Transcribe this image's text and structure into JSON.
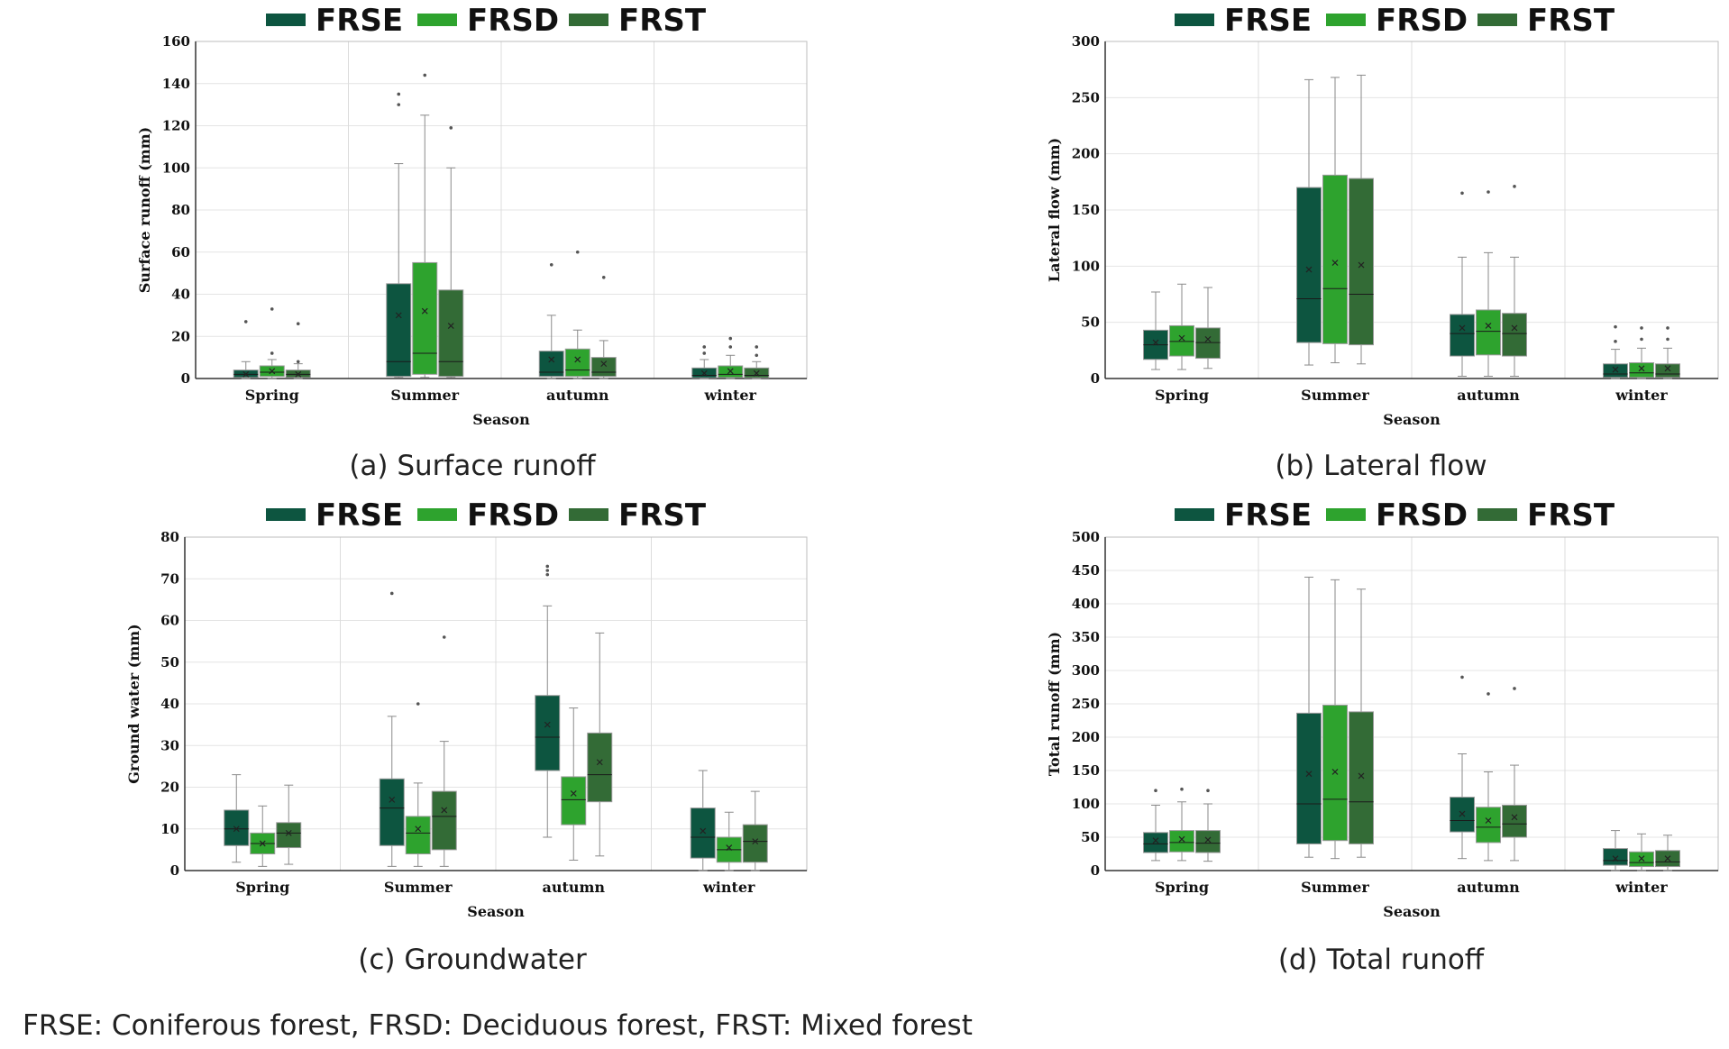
{
  "footnote": "FRSE: Coniferous forest, FRSD: Deciduous forest, FRST: Mixed forest",
  "colors": {
    "FRSE": "#0d5540",
    "FRSD": "#2ea32e",
    "FRST": "#336b36"
  },
  "chart_data": [
    {
      "type": "box",
      "caption": "(a) Surface runoff",
      "xlabel": "Season",
      "ylabel": "Surface runoff (mm)",
      "categories": [
        "Spring",
        "Summer",
        "autumn",
        "winter"
      ],
      "ylim": [
        0,
        160
      ],
      "yticks": [
        0,
        20,
        40,
        60,
        80,
        100,
        120,
        140,
        160
      ],
      "legend": [
        "FRSE",
        "FRSD",
        "FRST"
      ],
      "series": [
        {
          "name": "FRSE",
          "boxes": [
            {
              "min": 0,
              "q1": 0.5,
              "median": 2,
              "q3": 4,
              "max": 8,
              "mean": 2,
              "outliers": [
                27
              ]
            },
            {
              "min": 0.5,
              "q1": 1,
              "median": 8,
              "q3": 45,
              "max": 102,
              "mean": 30,
              "outliers": [
                130,
                135
              ]
            },
            {
              "min": 0,
              "q1": 1,
              "median": 3,
              "q3": 13,
              "max": 30,
              "mean": 9,
              "outliers": [
                54
              ]
            },
            {
              "min": 0,
              "q1": 0.3,
              "median": 1.5,
              "q3": 5,
              "max": 9,
              "mean": 2.5,
              "outliers": [
                12,
                15
              ]
            }
          ]
        },
        {
          "name": "FRSD",
          "boxes": [
            {
              "min": 0,
              "q1": 1,
              "median": 3,
              "q3": 6,
              "max": 9,
              "mean": 3.5,
              "outliers": [
                12,
                33
              ]
            },
            {
              "min": 0.5,
              "q1": 2,
              "median": 12,
              "q3": 55,
              "max": 125,
              "mean": 32,
              "outliers": [
                144
              ]
            },
            {
              "min": 0,
              "q1": 1,
              "median": 4,
              "q3": 14,
              "max": 23,
              "mean": 9,
              "outliers": [
                60
              ]
            },
            {
              "min": 0,
              "q1": 0.5,
              "median": 2,
              "q3": 6,
              "max": 11,
              "mean": 3.5,
              "outliers": [
                15,
                19
              ]
            }
          ]
        },
        {
          "name": "FRST",
          "boxes": [
            {
              "min": 0,
              "q1": 0.5,
              "median": 2,
              "q3": 4,
              "max": 7,
              "mean": 2,
              "outliers": [
                8,
                26
              ]
            },
            {
              "min": 0.5,
              "q1": 1,
              "median": 8,
              "q3": 42,
              "max": 100,
              "mean": 25,
              "outliers": [
                119
              ]
            },
            {
              "min": 0,
              "q1": 1,
              "median": 3,
              "q3": 10,
              "max": 18,
              "mean": 7,
              "outliers": [
                48
              ]
            },
            {
              "min": 0,
              "q1": 0.3,
              "median": 1.5,
              "q3": 5,
              "max": 8,
              "mean": 2.5,
              "outliers": [
                11,
                15
              ]
            }
          ]
        }
      ]
    },
    {
      "type": "box",
      "caption": "(b) Lateral flow",
      "xlabel": "Season",
      "ylabel": "Lateral flow (mm)",
      "categories": [
        "Spring",
        "Summer",
        "autumn",
        "winter"
      ],
      "ylim": [
        0,
        300
      ],
      "yticks": [
        0,
        50,
        100,
        150,
        200,
        250,
        300
      ],
      "legend": [
        "FRSE",
        "FRSD",
        "FRST"
      ],
      "series": [
        {
          "name": "FRSE",
          "boxes": [
            {
              "min": 8,
              "q1": 17,
              "median": 30,
              "q3": 43,
              "max": 77,
              "mean": 32,
              "outliers": []
            },
            {
              "min": 12,
              "q1": 32,
              "median": 71,
              "q3": 170,
              "max": 266,
              "mean": 97,
              "outliers": []
            },
            {
              "min": 2,
              "q1": 20,
              "median": 40,
              "q3": 57,
              "max": 108,
              "mean": 45,
              "outliers": [
                165
              ]
            },
            {
              "min": 0,
              "q1": 1,
              "median": 4,
              "q3": 13,
              "max": 26,
              "mean": 8,
              "outliers": [
                33,
                46
              ]
            }
          ]
        },
        {
          "name": "FRSD",
          "boxes": [
            {
              "min": 8,
              "q1": 20,
              "median": 33,
              "q3": 47,
              "max": 84,
              "mean": 36,
              "outliers": []
            },
            {
              "min": 14,
              "q1": 31,
              "median": 80,
              "q3": 181,
              "max": 268,
              "mean": 103,
              "outliers": []
            },
            {
              "min": 2,
              "q1": 21,
              "median": 42,
              "q3": 61,
              "max": 112,
              "mean": 47,
              "outliers": [
                166
              ]
            },
            {
              "min": 0,
              "q1": 1,
              "median": 5,
              "q3": 14,
              "max": 27,
              "mean": 9,
              "outliers": [
                35,
                45
              ]
            }
          ]
        },
        {
          "name": "FRST",
          "boxes": [
            {
              "min": 9,
              "q1": 18,
              "median": 32,
              "q3": 45,
              "max": 81,
              "mean": 35,
              "outliers": []
            },
            {
              "min": 13,
              "q1": 30,
              "median": 75,
              "q3": 178,
              "max": 270,
              "mean": 101,
              "outliers": []
            },
            {
              "min": 2,
              "q1": 20,
              "median": 40,
              "q3": 58,
              "max": 108,
              "mean": 45,
              "outliers": [
                171
              ]
            },
            {
              "min": 0,
              "q1": 1,
              "median": 4,
              "q3": 13,
              "max": 27,
              "mean": 9,
              "outliers": [
                35,
                45
              ]
            }
          ]
        }
      ]
    },
    {
      "type": "box",
      "caption": "(c) Groundwater",
      "xlabel": "Season",
      "ylabel": "Ground water (mm)",
      "categories": [
        "Spring",
        "Summer",
        "autumn",
        "winter"
      ],
      "ylim": [
        0,
        80
      ],
      "yticks": [
        0,
        10,
        20,
        30,
        40,
        50,
        60,
        70,
        80
      ],
      "legend": [
        "FRSE",
        "FRSD",
        "FRST"
      ],
      "series": [
        {
          "name": "FRSE",
          "boxes": [
            {
              "min": 2,
              "q1": 6,
              "median": 10,
              "q3": 14.5,
              "max": 23,
              "mean": 10,
              "outliers": []
            },
            {
              "min": 1,
              "q1": 6,
              "median": 15,
              "q3": 22,
              "max": 37,
              "mean": 17,
              "outliers": [
                66.5
              ]
            },
            {
              "min": 8,
              "q1": 24,
              "median": 32,
              "q3": 42,
              "max": 63.5,
              "mean": 35,
              "outliers": [
                71,
                72,
                73
              ]
            },
            {
              "min": 0,
              "q1": 3,
              "median": 8,
              "q3": 15,
              "max": 24,
              "mean": 9.5,
              "outliers": []
            }
          ]
        },
        {
          "name": "FRSD",
          "boxes": [
            {
              "min": 1,
              "q1": 4,
              "median": 6.5,
              "q3": 9,
              "max": 15.5,
              "mean": 6.5,
              "outliers": []
            },
            {
              "min": 1,
              "q1": 4,
              "median": 9,
              "q3": 13,
              "max": 21,
              "mean": 10,
              "outliers": [
                40
              ]
            },
            {
              "min": 2.5,
              "q1": 11,
              "median": 17,
              "q3": 22.5,
              "max": 39,
              "mean": 18.5,
              "outliers": []
            },
            {
              "min": 0,
              "q1": 2,
              "median": 5,
              "q3": 8,
              "max": 14,
              "mean": 5.5,
              "outliers": []
            }
          ]
        },
        {
          "name": "FRST",
          "boxes": [
            {
              "min": 1.5,
              "q1": 5.5,
              "median": 9,
              "q3": 11.5,
              "max": 20.5,
              "mean": 9,
              "outliers": []
            },
            {
              "min": 1,
              "q1": 5,
              "median": 13,
              "q3": 19,
              "max": 31,
              "mean": 14.5,
              "outliers": [
                56
              ]
            },
            {
              "min": 3.5,
              "q1": 16.5,
              "median": 23,
              "q3": 33,
              "max": 57,
              "mean": 26,
              "outliers": []
            },
            {
              "min": 0,
              "q1": 2,
              "median": 7,
              "q3": 11,
              "max": 19,
              "mean": 7,
              "outliers": []
            }
          ]
        }
      ]
    },
    {
      "type": "box",
      "caption": "(d) Total runoff",
      "xlabel": "Season",
      "ylabel": "Total runoff (mm)",
      "categories": [
        "Spring",
        "Summer",
        "autumn",
        "winter"
      ],
      "ylim": [
        0,
        500
      ],
      "yticks": [
        0,
        50,
        100,
        150,
        200,
        250,
        300,
        350,
        400,
        450,
        500
      ],
      "legend": [
        "FRSE",
        "FRSD",
        "FRST"
      ],
      "series": [
        {
          "name": "FRSE",
          "boxes": [
            {
              "min": 15,
              "q1": 27,
              "median": 40,
              "q3": 57,
              "max": 98,
              "mean": 45,
              "outliers": [
                120
              ]
            },
            {
              "min": 20,
              "q1": 40,
              "median": 100,
              "q3": 236,
              "max": 440,
              "mean": 145,
              "outliers": []
            },
            {
              "min": 18,
              "q1": 58,
              "median": 75,
              "q3": 110,
              "max": 175,
              "mean": 85,
              "outliers": [
                290
              ]
            },
            {
              "min": 0,
              "q1": 8,
              "median": 15,
              "q3": 33,
              "max": 60,
              "mean": 18,
              "outliers": []
            }
          ]
        },
        {
          "name": "FRSD",
          "boxes": [
            {
              "min": 15,
              "q1": 28,
              "median": 42,
              "q3": 60,
              "max": 103,
              "mean": 47,
              "outliers": [
                122
              ]
            },
            {
              "min": 18,
              "q1": 45,
              "median": 107,
              "q3": 248,
              "max": 436,
              "mean": 148,
              "outliers": []
            },
            {
              "min": 15,
              "q1": 42,
              "median": 65,
              "q3": 95,
              "max": 148,
              "mean": 75,
              "outliers": [
                265
              ]
            },
            {
              "min": 0,
              "q1": 6,
              "median": 12,
              "q3": 28,
              "max": 55,
              "mean": 18,
              "outliers": []
            }
          ]
        },
        {
          "name": "FRST",
          "boxes": [
            {
              "min": 14,
              "q1": 27,
              "median": 41,
              "q3": 60,
              "max": 100,
              "mean": 46,
              "outliers": [
                120
              ]
            },
            {
              "min": 20,
              "q1": 40,
              "median": 103,
              "q3": 238,
              "max": 422,
              "mean": 142,
              "outliers": []
            },
            {
              "min": 15,
              "q1": 50,
              "median": 70,
              "q3": 98,
              "max": 158,
              "mean": 80,
              "outliers": [
                273
              ]
            },
            {
              "min": 0,
              "q1": 6,
              "median": 13,
              "q3": 30,
              "max": 53,
              "mean": 18,
              "outliers": []
            }
          ]
        }
      ]
    }
  ]
}
